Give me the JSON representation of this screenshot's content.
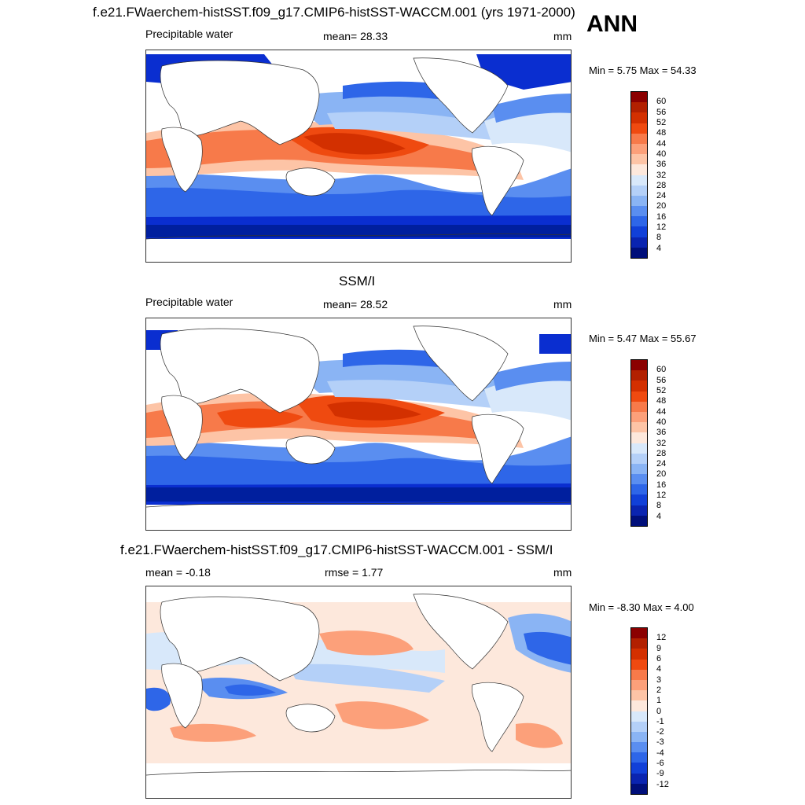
{
  "panel1": {
    "title": "f.e21.FWaerchem-histSST.f09_g17.CMIP6-histSST-WACCM.001 (yrs 1971-2000)",
    "season": "ANN",
    "left_label": "Precipitable water",
    "center_label": "mean=  28.33",
    "right_label": "mm",
    "minmax": "Min =   5.75 Max =  54.33"
  },
  "panel2": {
    "title": "SSM/I",
    "left_label": "Precipitable water",
    "center_label": "mean=  28.52",
    "right_label": "mm",
    "minmax": "Min =   5.47 Max =  55.67"
  },
  "panel3": {
    "title": "f.e21.FWaerchem-histSST.f09_g17.CMIP6-histSST-WACCM.001 - SSM/I",
    "left_label": "mean =  -0.18",
    "center_label": "rmse =   1.77",
    "right_label": "mm",
    "minmax": "Min =  -8.30 Max =   4.00"
  },
  "colorbar_main": {
    "levels": [
      "60",
      "56",
      "52",
      "48",
      "44",
      "40",
      "36",
      "32",
      "28",
      "24",
      "20",
      "16",
      "12",
      "8",
      "4"
    ],
    "colors": [
      "#8b0000",
      "#b22000",
      "#d33000",
      "#ef4a10",
      "#f77a4a",
      "#fca07a",
      "#fdc4a6",
      "#fde8dc",
      "#d8e8fa",
      "#b4d0f8",
      "#8ab4f4",
      "#5a8ef0",
      "#2e66e8",
      "#1140d8",
      "#0a24b0",
      "#000f7a"
    ]
  },
  "colorbar_diff": {
    "levels": [
      "12",
      "9",
      "6",
      "4",
      "3",
      "2",
      "1",
      "0",
      "-1",
      "-2",
      "-3",
      "-4",
      "-6",
      "-9",
      "-12"
    ],
    "colors": [
      "#8b0000",
      "#b22000",
      "#d33000",
      "#ef4a10",
      "#f77a4a",
      "#fca07a",
      "#fdc4a6",
      "#fde8dc",
      "#d8e8fa",
      "#b4d0f8",
      "#8ab4f4",
      "#5a8ef0",
      "#2e66e8",
      "#1140d8",
      "#0a24b0",
      "#000f7a"
    ]
  }
}
